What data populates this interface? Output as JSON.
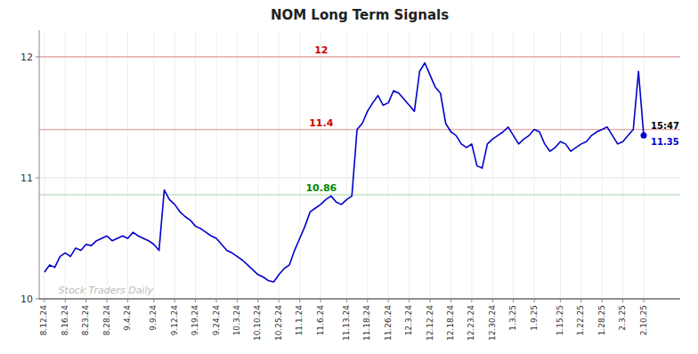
{
  "chart_data": {
    "type": "line",
    "title": "NOM Long Term Signals",
    "categories": [
      "8.12.24",
      null,
      null,
      null,
      "8.16.24",
      null,
      null,
      null,
      "8.23.24",
      null,
      null,
      null,
      "8.28.24",
      null,
      null,
      null,
      "9.4.24",
      null,
      null,
      null,
      null,
      "9.9.24",
      null,
      null,
      null,
      "9.12.24",
      null,
      null,
      null,
      "9.19.24",
      null,
      null,
      null,
      "9.24.24",
      null,
      null,
      null,
      "10.3.24",
      null,
      null,
      null,
      "10.10.24",
      null,
      null,
      null,
      "10.25.24",
      null,
      null,
      null,
      "11.1.24",
      null,
      null,
      null,
      "11.6.24",
      null,
      null,
      null,
      null,
      "11.13.24",
      null,
      null,
      null,
      "11.18.24",
      null,
      null,
      null,
      "11.26.24",
      null,
      null,
      null,
      "12.3.24",
      null,
      null,
      null,
      "12.12.24",
      null,
      null,
      null,
      "12.18.24",
      null,
      null,
      null,
      "12.23.24",
      null,
      null,
      null,
      "12.30.24",
      null,
      null,
      null,
      "1.3.25",
      null,
      null,
      null,
      "1.9.25",
      null,
      null,
      null,
      null,
      "1.15.25",
      null,
      null,
      null,
      "1.22.25",
      null,
      null,
      null,
      "1.28.25",
      null,
      null,
      null,
      "2.3.25",
      null,
      null,
      null,
      "2.10.25"
    ],
    "values": [
      10.22,
      10.28,
      10.26,
      10.35,
      10.38,
      10.35,
      10.42,
      10.4,
      10.45,
      10.44,
      10.48,
      10.5,
      10.52,
      10.48,
      10.5,
      10.52,
      10.5,
      10.55,
      10.52,
      10.5,
      10.48,
      10.45,
      10.4,
      10.9,
      10.82,
      10.78,
      10.72,
      10.68,
      10.65,
      10.6,
      10.58,
      10.55,
      10.52,
      10.5,
      10.45,
      10.4,
      10.38,
      10.35,
      10.32,
      10.28,
      10.24,
      10.2,
      10.18,
      10.15,
      10.14,
      10.2,
      10.25,
      10.28,
      10.4,
      10.5,
      10.6,
      10.72,
      10.75,
      10.78,
      10.82,
      10.85,
      10.8,
      10.78,
      10.82,
      10.85,
      11.4,
      11.45,
      11.55,
      11.62,
      11.68,
      11.6,
      11.62,
      11.72,
      11.7,
      11.65,
      11.6,
      11.55,
      11.88,
      11.95,
      11.85,
      11.75,
      11.7,
      11.45,
      11.38,
      11.35,
      11.28,
      11.25,
      11.28,
      11.1,
      11.08,
      11.28,
      11.32,
      11.35,
      11.38,
      11.42,
      11.35,
      11.28,
      11.32,
      11.35,
      11.4,
      11.38,
      11.28,
      11.22,
      11.25,
      11.3,
      11.28,
      11.22,
      11.25,
      11.28,
      11.3,
      11.35,
      11.38,
      11.4,
      11.42,
      11.35,
      11.28,
      11.3,
      11.35,
      11.4,
      11.88,
      11.35
    ],
    "color": "#0000cc",
    "ylim": [
      10.0,
      12.22
    ],
    "yticks": [
      10,
      11,
      12
    ],
    "grid": true,
    "hlines": [
      {
        "value": 12.0,
        "label": "12",
        "color": "#cc0000"
      },
      {
        "value": 11.4,
        "label": "11.4",
        "color": "#cc0000"
      },
      {
        "value": 10.86,
        "label": "10.86",
        "color": "#008800"
      }
    ],
    "last_point": {
      "label": "15:47",
      "value": 11.35
    },
    "watermark": "Stock Traders Daily"
  }
}
